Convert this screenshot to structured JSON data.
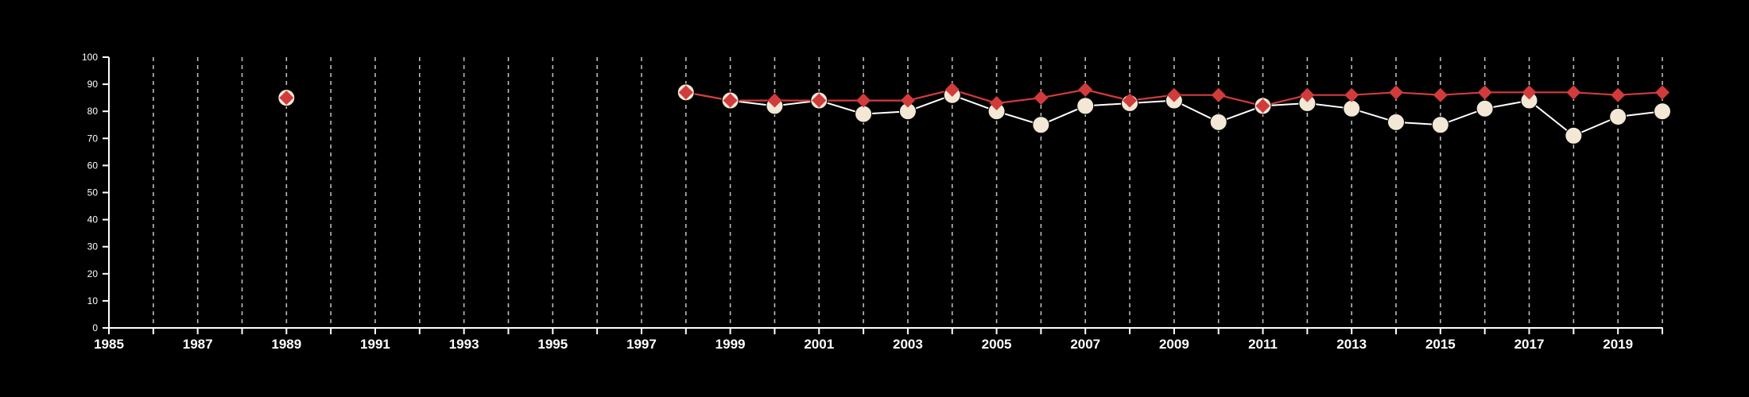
{
  "colors": {
    "background": "#000000",
    "axis": "#ffffff",
    "grid": "#bbbbbb",
    "series_a_line": "#ffffff",
    "series_a_marker": "#f3e7d5",
    "series_b": "#d23b3b"
  },
  "chart_data": {
    "type": "line",
    "title": "",
    "xlabel": "",
    "ylabel": "",
    "xlim": [
      1985,
      2020
    ],
    "ylim": [
      0,
      100
    ],
    "x_ticks": [
      "1985",
      "1987",
      "1989",
      "1991",
      "1993",
      "1995",
      "1997",
      "1999",
      "2001",
      "2003",
      "2005",
      "2007",
      "2009",
      "2011",
      "2013",
      "2015",
      "2017",
      "2019"
    ],
    "y_ticks": [
      "0",
      "10",
      "20",
      "30",
      "40",
      "50",
      "60",
      "70",
      "80",
      "90",
      "100"
    ],
    "grid": "vertical dashed lines at every year",
    "legend": "none",
    "series": [
      {
        "marker": "circle",
        "x": [
          1989,
          1998,
          1999,
          2000,
          2001,
          2002,
          2003,
          2004,
          2005,
          2006,
          2007,
          2008,
          2009,
          2010,
          2011,
          2012,
          2013,
          2014,
          2015,
          2016,
          2017,
          2018,
          2019,
          2020
        ],
        "values": [
          85,
          87,
          84,
          82,
          84,
          79,
          80,
          86,
          80,
          75,
          82,
          83,
          84,
          76,
          82,
          83,
          81,
          76,
          75,
          81,
          84,
          71,
          78,
          80
        ]
      },
      {
        "marker": "diamond",
        "x": [
          1989,
          1998,
          1999,
          2000,
          2001,
          2002,
          2003,
          2004,
          2005,
          2006,
          2007,
          2008,
          2009,
          2010,
          2011,
          2012,
          2013,
          2014,
          2015,
          2016,
          2017,
          2018,
          2019,
          2020
        ],
        "values": [
          85,
          87,
          84,
          84,
          84,
          84,
          84,
          88,
          83,
          85,
          88,
          84,
          86,
          86,
          82,
          86,
          86,
          87,
          86,
          87,
          87,
          87,
          86,
          87
        ]
      }
    ]
  }
}
